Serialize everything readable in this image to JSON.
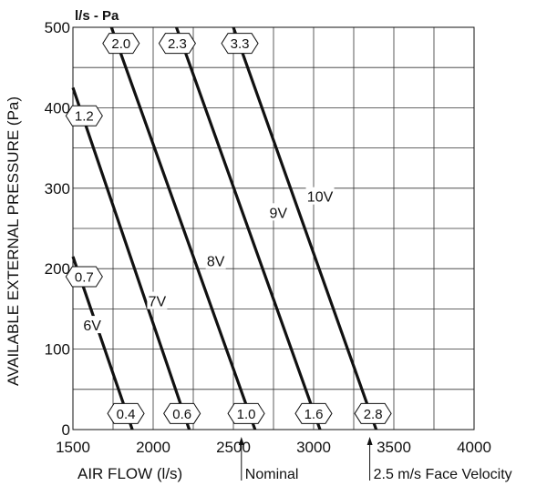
{
  "chart_data": {
    "type": "line",
    "title": "",
    "units_label": "l/s - Pa",
    "xlabel": "AIR FLOW (l/s)",
    "ylabel": "AVAILABLE EXTERNAL PRESSURE (Pa)",
    "xlim": [
      1500,
      4000
    ],
    "ylim": [
      0,
      500
    ],
    "x_ticks": [
      1500,
      2000,
      2500,
      3000,
      3500,
      4000
    ],
    "y_ticks": [
      0,
      100,
      200,
      300,
      400,
      500
    ],
    "grid": true,
    "series": [
      {
        "name": "6V",
        "points": [
          [
            1500,
            215
          ],
          [
            1870,
            0
          ]
        ]
      },
      {
        "name": "7V",
        "points": [
          [
            1500,
            425
          ],
          [
            2225,
            0
          ]
        ]
      },
      {
        "name": "8V",
        "points": [
          [
            1740,
            500
          ],
          [
            2635,
            0
          ]
        ]
      },
      {
        "name": "9V",
        "points": [
          [
            2145,
            500
          ],
          [
            3040,
            0
          ]
        ]
      },
      {
        "name": "10V",
        "points": [
          [
            2500,
            500
          ],
          [
            3390,
            0
          ]
        ]
      }
    ],
    "series_label_positions": [
      {
        "name": "6V",
        "x": 1620,
        "y": 130
      },
      {
        "name": "7V",
        "x": 2025,
        "y": 160
      },
      {
        "name": "8V",
        "x": 2390,
        "y": 210
      },
      {
        "name": "9V",
        "x": 2780,
        "y": 270
      },
      {
        "name": "10V",
        "x": 3040,
        "y": 290
      }
    ],
    "annotations": [
      {
        "text": "2.0",
        "x": 1800,
        "y": 480
      },
      {
        "text": "2.3",
        "x": 2150,
        "y": 480
      },
      {
        "text": "3.3",
        "x": 2540,
        "y": 480
      },
      {
        "text": "1.2",
        "x": 1570,
        "y": 390
      },
      {
        "text": "0.7",
        "x": 1570,
        "y": 190
      },
      {
        "text": "0.4",
        "x": 1830,
        "y": 20
      },
      {
        "text": "0.6",
        "x": 2180,
        "y": 20
      },
      {
        "text": "1.0",
        "x": 2580,
        "y": 20
      },
      {
        "text": "1.6",
        "x": 3000,
        "y": 20
      },
      {
        "text": "2.8",
        "x": 3370,
        "y": 20
      }
    ],
    "markers": [
      {
        "text": "Nominal",
        "x": 2550
      },
      {
        "text": "2.5 m/s Face Velocity",
        "x": 3350
      }
    ]
  }
}
